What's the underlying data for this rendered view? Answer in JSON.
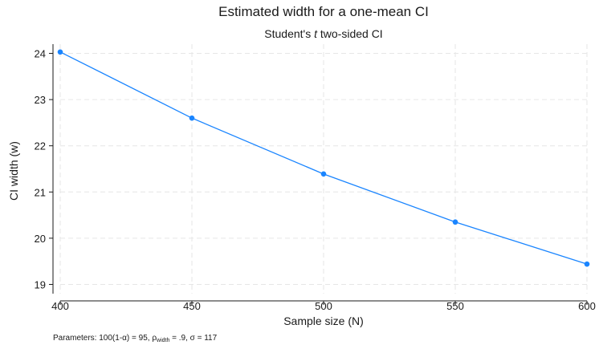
{
  "chart_data": {
    "type": "line",
    "title": "Estimated width for a one-mean CI",
    "subtitle_prefix": "Student's ",
    "subtitle_italic": "t",
    "subtitle_suffix": " two-sided CI",
    "xlabel": "Sample size (N)",
    "ylabel": "CI width (w)",
    "x": [
      400,
      450,
      500,
      550,
      600
    ],
    "series": [
      {
        "values": [
          24.03,
          22.6,
          21.39,
          20.35,
          19.44
        ]
      }
    ],
    "xticks": [
      "400",
      "450",
      "500",
      "550",
      "600"
    ],
    "yticks": [
      "19",
      "20",
      "21",
      "22",
      "23",
      "24"
    ],
    "xlim": [
      400,
      600
    ],
    "ylim": [
      18.8,
      24.2
    ],
    "grid": true,
    "line_color": "#1a85ff",
    "note": {
      "prefix": "Parameters: 100(1-α) = 95, ρ",
      "subscript": "width",
      "suffix": " = .9, σ = 117"
    }
  }
}
